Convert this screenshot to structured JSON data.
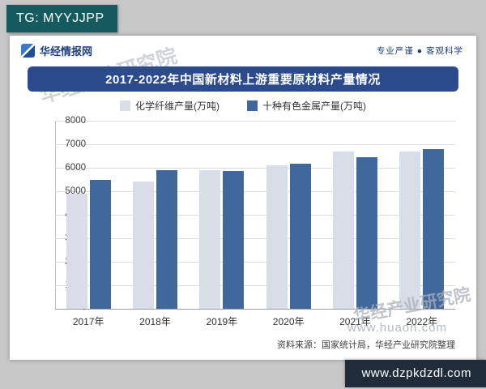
{
  "badges": {
    "tg": "TG: MYYJJPP",
    "site_url": "www.dzpkdzdl.com"
  },
  "header": {
    "brand": "华经情报网",
    "tagline": "专业严谨 ● 客观科学"
  },
  "title": "2017-2022年中国新材料上游重要原材料产量情况",
  "source": "资料来源：国家统计局，华经产业研究院整理",
  "watermarks": {
    "diagonal_top": "华经产业研究院",
    "diagonal_bottom": "华经产业研究院",
    "url": "www.huaon.com"
  },
  "colors": {
    "page_bg": "#c7c7c7",
    "banner_bg": "#2c4b8d",
    "navy": "#1d3f79",
    "tg_badge_bg": "#145a5e",
    "url_badge_bg": "#212c3b"
  },
  "chart_data": {
    "type": "bar",
    "title": "2017-2022年中国新材料上游重要原材料产量情况",
    "categories": [
      "2017年",
      "2018年",
      "2019年",
      "2020年",
      "2021年",
      "2022年"
    ],
    "series": [
      {
        "name": "化学纤维产量(万吨)",
        "color": "#d9dde8",
        "values": [
          4900,
          5400,
          5880,
          6100,
          6700,
          6700
        ]
      },
      {
        "name": "十种有色金属产量(万吨)",
        "color": "#41689c",
        "values": [
          5500,
          5900,
          5850,
          6170,
          6450,
          6800
        ]
      }
    ],
    "ylim": [
      0,
      8000
    ],
    "ytick_step": 1000,
    "ytick_labels": [
      "8000",
      "7000",
      "6000",
      "5000",
      "4000",
      "3000",
      "2000",
      "1000",
      "-"
    ],
    "grid": true,
    "legend_position": "top"
  }
}
